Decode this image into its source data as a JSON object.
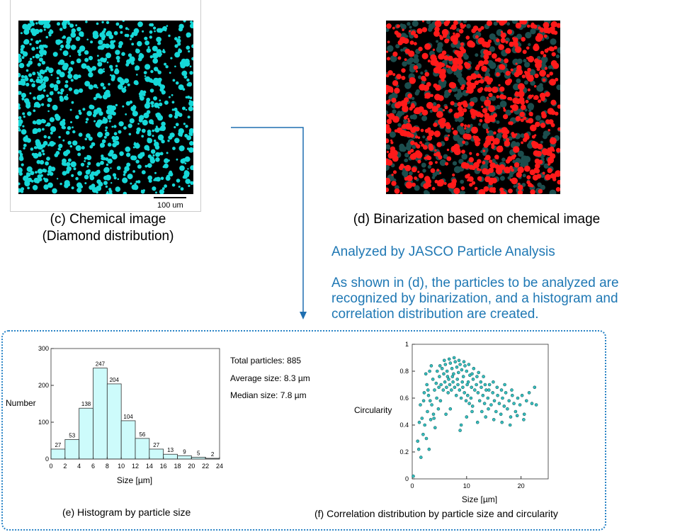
{
  "captions": {
    "c_line1": "(c) Chemical image",
    "c_line2": "(Diamond distribution)",
    "d": "(d) Binarization based on chemical image",
    "e": "(e) Histogram by particle size",
    "f": "(f) Correlation distribution by particle size and circularity"
  },
  "scalebar_label": "100 um",
  "analysis": {
    "title": "Analyzed by JASCO Particle Analysis",
    "line1": "As shown in (d), the particles to be analyzed are",
    "line2": "recognized by binarization, and a histogram and",
    "line3": "correlation distribution are created."
  },
  "stats": {
    "total": "Total particles: 885",
    "average": "Average size: 8.3 µm",
    "median": "Median size: 7.8 µm"
  },
  "colors": {
    "accent": "#1f78b4",
    "particle_cyan": "#16d8d8",
    "binary_red": "#ff1a1a",
    "bar_fill": "#cdfbfb",
    "scatter_fill": "#35c0c0"
  },
  "chart_data": [
    {
      "type": "bar",
      "xlabel": "Size [µm]",
      "ylabel": "Number",
      "ylim": [
        0,
        300
      ],
      "yticks": [
        0,
        100,
        200,
        300
      ],
      "xticks": [
        0,
        2,
        4,
        6,
        8,
        10,
        12,
        14,
        16,
        18,
        20,
        22,
        24
      ],
      "bins": [
        [
          0,
          2
        ],
        [
          2,
          4
        ],
        [
          4,
          6
        ],
        [
          6,
          8
        ],
        [
          8,
          10
        ],
        [
          10,
          12
        ],
        [
          12,
          14
        ],
        [
          14,
          16
        ],
        [
          16,
          18
        ],
        [
          18,
          20
        ],
        [
          20,
          22
        ],
        [
          22,
          24
        ]
      ],
      "values": [
        27,
        53,
        138,
        247,
        204,
        104,
        56,
        27,
        13,
        9,
        5,
        2
      ]
    },
    {
      "type": "scatter",
      "xlabel": "Size [µm]",
      "ylabel": "Circularity",
      "xlim": [
        0,
        25
      ],
      "ylim": [
        0,
        1
      ],
      "xticks": [
        0,
        10,
        20
      ],
      "yticks": [
        0,
        0.2,
        0.4,
        0.6,
        0.8,
        1
      ],
      "points": [
        [
          0.2,
          0.02
        ],
        [
          1.0,
          0.28
        ],
        [
          1.2,
          0.22
        ],
        [
          1.6,
          0.16
        ],
        [
          2.0,
          0.33
        ],
        [
          1.3,
          0.42
        ],
        [
          1.8,
          0.45
        ],
        [
          2.3,
          0.4
        ],
        [
          1.5,
          0.55
        ],
        [
          2.1,
          0.58
        ],
        [
          2.6,
          0.3
        ],
        [
          3.1,
          0.22
        ],
        [
          2.8,
          0.5
        ],
        [
          3.4,
          0.44
        ],
        [
          2.2,
          0.64
        ],
        [
          2.7,
          0.7
        ],
        [
          3.0,
          0.62
        ],
        [
          3.6,
          0.55
        ],
        [
          3.9,
          0.48
        ],
        [
          4.2,
          0.38
        ],
        [
          2.5,
          0.78
        ],
        [
          3.2,
          0.8
        ],
        [
          3.8,
          0.74
        ],
        [
          4.1,
          0.66
        ],
        [
          4.5,
          0.6
        ],
        [
          4.8,
          0.52
        ],
        [
          5.2,
          0.58
        ],
        [
          4.4,
          0.71
        ],
        [
          5.0,
          0.76
        ],
        [
          5.5,
          0.82
        ],
        [
          5.8,
          0.78
        ],
        [
          6.1,
          0.85
        ],
        [
          6.4,
          0.8
        ],
        [
          6.7,
          0.74
        ],
        [
          7.0,
          0.86
        ],
        [
          7.3,
          0.82
        ],
        [
          7.6,
          0.78
        ],
        [
          7.9,
          0.87
        ],
        [
          8.2,
          0.83
        ],
        [
          8.5,
          0.79
        ],
        [
          8.8,
          0.85
        ],
        [
          9.1,
          0.81
        ],
        [
          9.4,
          0.76
        ],
        [
          9.7,
          0.84
        ],
        [
          10.0,
          0.8
        ],
        [
          10.3,
          0.72
        ],
        [
          10.6,
          0.77
        ],
        [
          10.9,
          0.68
        ],
        [
          11.2,
          0.74
        ],
        [
          11.5,
          0.66
        ],
        [
          5.3,
          0.7
        ],
        [
          5.7,
          0.66
        ],
        [
          6.0,
          0.72
        ],
        [
          6.3,
          0.68
        ],
        [
          6.6,
          0.64
        ],
        [
          6.9,
          0.7
        ],
        [
          7.2,
          0.66
        ],
        [
          7.5,
          0.72
        ],
        [
          7.8,
          0.68
        ],
        [
          8.1,
          0.62
        ],
        [
          8.4,
          0.7
        ],
        [
          8.7,
          0.66
        ],
        [
          9.0,
          0.6
        ],
        [
          9.3,
          0.68
        ],
        [
          9.6,
          0.64
        ],
        [
          9.9,
          0.58
        ],
        [
          10.2,
          0.62
        ],
        [
          10.5,
          0.56
        ],
        [
          10.8,
          0.6
        ],
        [
          11.1,
          0.54
        ],
        [
          11.8,
          0.7
        ],
        [
          12.1,
          0.64
        ],
        [
          12.4,
          0.58
        ],
        [
          12.7,
          0.68
        ],
        [
          13.0,
          0.62
        ],
        [
          13.3,
          0.56
        ],
        [
          13.6,
          0.66
        ],
        [
          13.9,
          0.6
        ],
        [
          14.2,
          0.7
        ],
        [
          14.5,
          0.55
        ],
        [
          14.8,
          0.64
        ],
        [
          15.1,
          0.58
        ],
        [
          15.4,
          0.5
        ],
        [
          15.7,
          0.62
        ],
        [
          16.0,
          0.56
        ],
        [
          16.3,
          0.48
        ],
        [
          16.6,
          0.6
        ],
        [
          16.9,
          0.54
        ],
        [
          17.2,
          0.64
        ],
        [
          17.5,
          0.52
        ],
        [
          17.8,
          0.58
        ],
        [
          18.1,
          0.46
        ],
        [
          18.4,
          0.62
        ],
        [
          18.7,
          0.56
        ],
        [
          19.0,
          0.5
        ],
        [
          19.4,
          0.6
        ],
        [
          19.8,
          0.55
        ],
        [
          20.2,
          0.62
        ],
        [
          20.6,
          0.48
        ],
        [
          21.0,
          0.58
        ],
        [
          21.5,
          0.64
        ],
        [
          22.0,
          0.56
        ],
        [
          22.5,
          0.68
        ],
        [
          22.8,
          0.55
        ],
        [
          12.0,
          0.42
        ],
        [
          13.5,
          0.46
        ],
        [
          15.0,
          0.44
        ],
        [
          18.0,
          0.4
        ],
        [
          20.5,
          0.44
        ],
        [
          9.0,
          0.4
        ],
        [
          10.0,
          0.46
        ],
        [
          8.8,
          0.36
        ],
        [
          6.2,
          0.48
        ],
        [
          7.0,
          0.52
        ],
        [
          4.0,
          0.45
        ],
        [
          11.0,
          0.5
        ],
        [
          16.5,
          0.42
        ],
        [
          19.3,
          0.47
        ],
        [
          14.0,
          0.52
        ],
        [
          12.8,
          0.5
        ],
        [
          5.1,
          0.84
        ],
        [
          5.9,
          0.88
        ],
        [
          6.8,
          0.89
        ],
        [
          7.7,
          0.9
        ],
        [
          8.6,
          0.88
        ],
        [
          9.5,
          0.87
        ],
        [
          10.4,
          0.85
        ],
        [
          11.3,
          0.82
        ],
        [
          12.2,
          0.79
        ],
        [
          13.1,
          0.76
        ],
        [
          4.6,
          0.8
        ],
        [
          3.5,
          0.84
        ],
        [
          2.9,
          0.66
        ],
        [
          3.3,
          0.58
        ],
        [
          4.9,
          0.68
        ],
        [
          6.5,
          0.76
        ],
        [
          7.4,
          0.76
        ],
        [
          8.3,
          0.74
        ],
        [
          9.2,
          0.72
        ],
        [
          10.1,
          0.7
        ],
        [
          11.0,
          0.78
        ],
        [
          11.9,
          0.76
        ],
        [
          12.6,
          0.72
        ],
        [
          13.4,
          0.7
        ],
        [
          14.1,
          0.66
        ],
        [
          14.9,
          0.72
        ],
        [
          15.6,
          0.68
        ],
        [
          16.4,
          0.66
        ],
        [
          17.0,
          0.7
        ],
        [
          18.3,
          0.66
        ]
      ]
    }
  ]
}
